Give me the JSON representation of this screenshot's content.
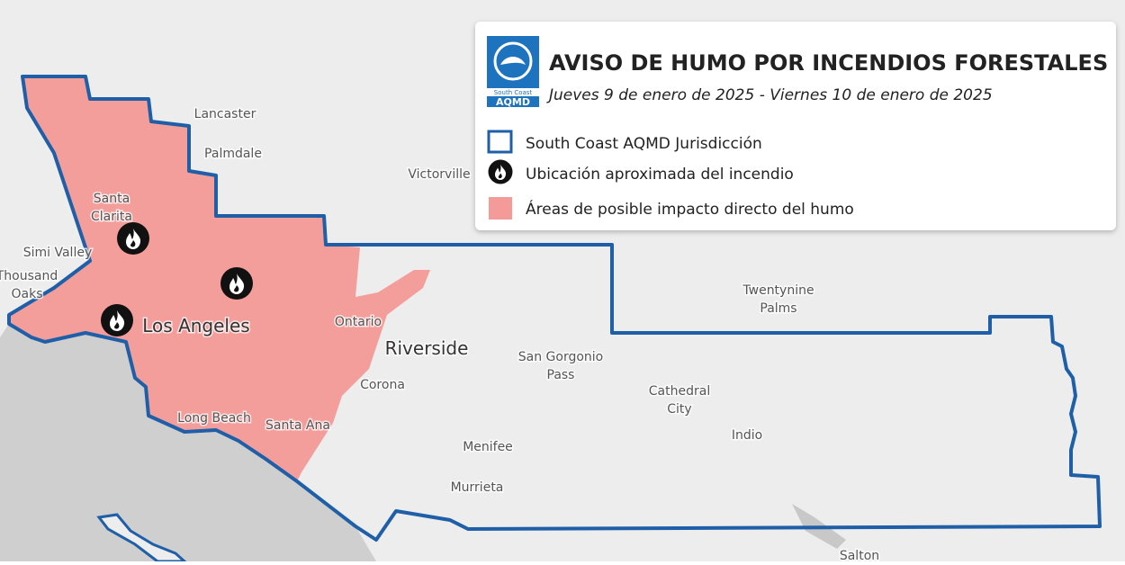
{
  "legend": {
    "logo": [
      "South Coast",
      "AQMD"
    ],
    "title": "AVISO DE HUMO POR INCENDIOS FORESTALES",
    "subtitle": "Jueves 9 de enero de 2025 - Viernes 10 de enero de 2025",
    "items": [
      "South Coast AQMD Jurisdicción",
      "Ubicación aproximada del incendio",
      "Áreas de posible impacto directo del humo"
    ]
  },
  "places": [
    {
      "lines": [
        "Lancaster"
      ]
    },
    {
      "lines": [
        "Palmdale"
      ]
    },
    {
      "lines": [
        "Victorville"
      ]
    },
    {
      "lines": [
        "Santa",
        "Clarita"
      ]
    },
    {
      "lines": [
        "Simi Valley"
      ]
    },
    {
      "lines": [
        "Thousand",
        "Oaks"
      ]
    },
    {
      "lines": [
        "Los Angeles"
      ]
    },
    {
      "lines": [
        "Ontario"
      ]
    },
    {
      "lines": [
        "Riverside"
      ]
    },
    {
      "lines": [
        "San Gorgonio",
        "Pass"
      ]
    },
    {
      "lines": [
        "Corona"
      ]
    },
    {
      "lines": [
        "Twentynine",
        "Palms"
      ]
    },
    {
      "lines": [
        "Cathedral",
        "City"
      ]
    },
    {
      "lines": [
        "Indio"
      ]
    },
    {
      "lines": [
        "Long Beach"
      ]
    },
    {
      "lines": [
        "Santa Ana"
      ]
    },
    {
      "lines": [
        "Menifee"
      ]
    },
    {
      "lines": [
        "Murrieta"
      ]
    },
    {
      "lines": [
        "Salton"
      ]
    }
  ]
}
